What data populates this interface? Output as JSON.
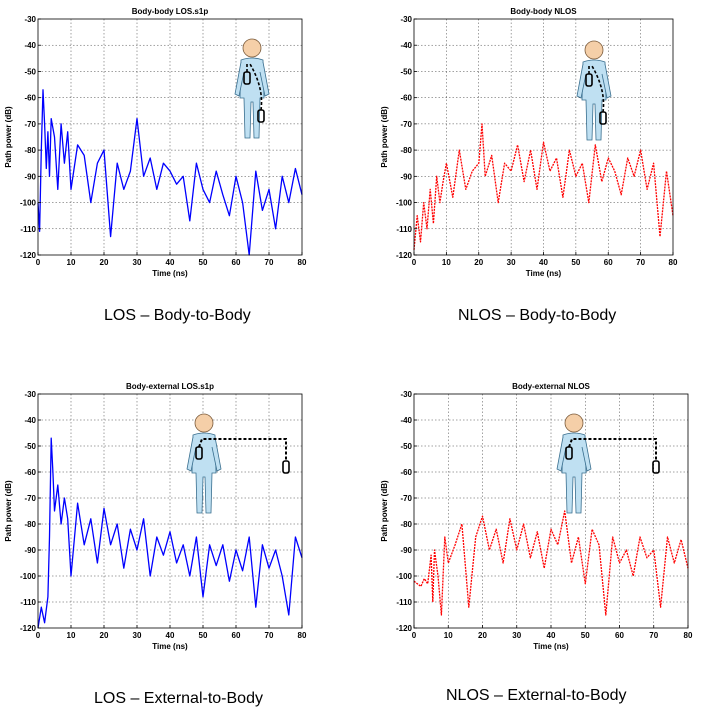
{
  "chart_data": [
    {
      "type": "line",
      "title": "Body-body LOS.s1p",
      "xlabel": "Time (ns)",
      "ylabel": "Path power (dB)",
      "xlim": [
        0,
        80
      ],
      "ylim": [
        -120,
        -30
      ],
      "xticks": [
        0,
        10,
        20,
        30,
        40,
        50,
        60,
        70,
        80
      ],
      "yticks": [
        -30,
        -40,
        -50,
        -60,
        -70,
        -80,
        -90,
        -100,
        -110,
        -120
      ],
      "grid": true,
      "line_color": "#0000ff",
      "line_style": "solid",
      "scenario_icon": "person-with-on-body-antennas-icon",
      "caption": "LOS – Body-to-Body",
      "series": [
        {
          "x": [
            0,
            0.5,
            1,
            1.5,
            2,
            2.5,
            3,
            3.5,
            4,
            5,
            6,
            7,
            8,
            9,
            10,
            12,
            14,
            16,
            18,
            20,
            22,
            24,
            26,
            28,
            30,
            32,
            34,
            36,
            38,
            40,
            42,
            44,
            46,
            48,
            50,
            52,
            54,
            56,
            58,
            60,
            62,
            64,
            66,
            68,
            70,
            72,
            74,
            76,
            78,
            80
          ],
          "y": [
            -100,
            -111,
            -80,
            -57,
            -70,
            -87,
            -73,
            -90,
            -68,
            -75,
            -95,
            -70,
            -85,
            -73,
            -95,
            -78,
            -82,
            -100,
            -85,
            -80,
            -113,
            -85,
            -95,
            -88,
            -68,
            -90,
            -83,
            -95,
            -85,
            -88,
            -93,
            -90,
            -107,
            -85,
            -95,
            -100,
            -88,
            -97,
            -105,
            -90,
            -100,
            -120,
            -88,
            -103,
            -95,
            -110,
            -90,
            -100,
            -87,
            -97
          ]
        }
      ]
    },
    {
      "type": "line",
      "title": "Body-body NLOS",
      "xlabel": "Time (ns)",
      "ylabel": "Path power (dB)",
      "xlim": [
        0,
        80
      ],
      "ylim": [
        -120,
        -30
      ],
      "xticks": [
        0,
        10,
        20,
        30,
        40,
        50,
        60,
        70,
        80
      ],
      "yticks": [
        -30,
        -40,
        -50,
        -60,
        -70,
        -80,
        -90,
        -100,
        -110,
        -120
      ],
      "grid": true,
      "line_color": "#ff0000",
      "line_style": "dashed",
      "scenario_icon": "person-with-on-body-antennas-icon",
      "caption": "NLOS – Body-to-Body",
      "series": [
        {
          "x": [
            0,
            1,
            2,
            3,
            4,
            5,
            6,
            7,
            8,
            9,
            10,
            12,
            14,
            16,
            18,
            20,
            21,
            22,
            24,
            26,
            28,
            30,
            32,
            34,
            36,
            38,
            40,
            42,
            44,
            46,
            48,
            50,
            52,
            54,
            56,
            58,
            60,
            62,
            64,
            66,
            68,
            70,
            72,
            74,
            76,
            78,
            80
          ],
          "y": [
            -118,
            -105,
            -115,
            -100,
            -110,
            -95,
            -108,
            -90,
            -100,
            -92,
            -85,
            -98,
            -80,
            -95,
            -88,
            -85,
            -70,
            -90,
            -82,
            -100,
            -85,
            -88,
            -78,
            -92,
            -80,
            -95,
            -77,
            -88,
            -83,
            -98,
            -80,
            -90,
            -85,
            -100,
            -78,
            -92,
            -83,
            -88,
            -97,
            -83,
            -90,
            -80,
            -95,
            -85,
            -113,
            -88,
            -105
          ]
        }
      ]
    },
    {
      "type": "line",
      "title": "Body-external LOS.s1p",
      "xlabel": "Time (ns)",
      "ylabel": "Path power (dB)",
      "xlim": [
        0,
        80
      ],
      "ylim": [
        -120,
        -30
      ],
      "xticks": [
        0,
        10,
        20,
        30,
        40,
        50,
        60,
        70,
        80
      ],
      "yticks": [
        -30,
        -40,
        -50,
        -60,
        -70,
        -80,
        -90,
        -100,
        -110,
        -120
      ],
      "grid": true,
      "line_color": "#0000ff",
      "line_style": "solid",
      "scenario_icon": "person-with-external-antenna-icon",
      "caption": "LOS – External-to-Body",
      "series": [
        {
          "x": [
            0,
            1,
            2,
            3,
            3.5,
            4,
            4.5,
            5,
            6,
            7,
            8,
            9,
            10,
            12,
            14,
            16,
            18,
            20,
            22,
            24,
            26,
            28,
            30,
            32,
            34,
            36,
            38,
            40,
            42,
            44,
            46,
            48,
            50,
            52,
            54,
            56,
            58,
            60,
            62,
            64,
            66,
            68,
            70,
            72,
            74,
            76,
            78,
            80
          ],
          "y": [
            -120,
            -112,
            -118,
            -108,
            -85,
            -47,
            -60,
            -75,
            -65,
            -80,
            -70,
            -78,
            -100,
            -72,
            -88,
            -78,
            -95,
            -74,
            -88,
            -80,
            -97,
            -82,
            -90,
            -78,
            -100,
            -85,
            -92,
            -83,
            -95,
            -88,
            -100,
            -85,
            -108,
            -88,
            -96,
            -88,
            -102,
            -90,
            -98,
            -85,
            -112,
            -88,
            -97,
            -90,
            -100,
            -115,
            -85,
            -93
          ]
        }
      ]
    },
    {
      "type": "line",
      "title": "Body-external NLOS",
      "xlabel": "Time (ns)",
      "ylabel": "Path power (dB)",
      "xlim": [
        0,
        80
      ],
      "ylim": [
        -120,
        -30
      ],
      "xticks": [
        0,
        10,
        20,
        30,
        40,
        50,
        60,
        70,
        80
      ],
      "yticks": [
        -30,
        -40,
        -50,
        -60,
        -70,
        -80,
        -90,
        -100,
        -110,
        -120
      ],
      "grid": true,
      "line_color": "#ff0000",
      "line_style": "dashed",
      "scenario_icon": "person-with-external-antenna-icon",
      "caption": "NLOS – External-to-Body",
      "series": [
        {
          "x": [
            0,
            1,
            2,
            3,
            4,
            5,
            5.5,
            6,
            7,
            8,
            9,
            10,
            12,
            14,
            16,
            18,
            20,
            22,
            24,
            26,
            28,
            30,
            32,
            34,
            36,
            38,
            40,
            42,
            44,
            46,
            48,
            50,
            52,
            54,
            56,
            58,
            60,
            62,
            64,
            66,
            68,
            70,
            72,
            74,
            76,
            78,
            80
          ],
          "y": [
            -102,
            -103,
            -104,
            -101,
            -103,
            -92,
            -110,
            -90,
            -100,
            -115,
            -85,
            -95,
            -88,
            -80,
            -112,
            -85,
            -77,
            -90,
            -82,
            -95,
            -78,
            -90,
            -80,
            -93,
            -83,
            -97,
            -82,
            -88,
            -75,
            -95,
            -85,
            -103,
            -82,
            -88,
            -115,
            -85,
            -95,
            -90,
            -100,
            -85,
            -93,
            -90,
            -112,
            -85,
            -95,
            -86,
            -97
          ]
        }
      ]
    }
  ]
}
